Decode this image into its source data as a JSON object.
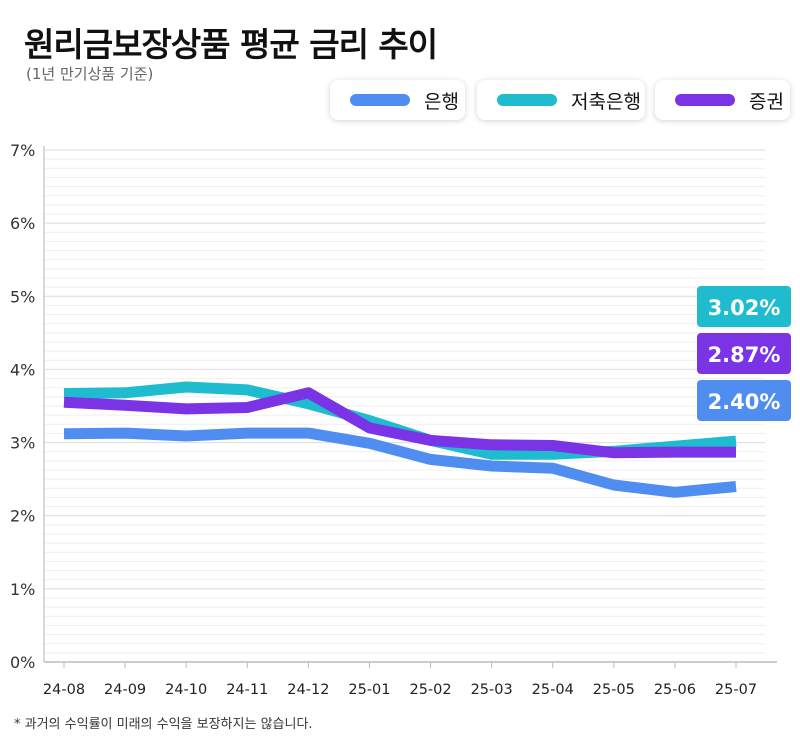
{
  "title": "원리금보장상품 평균 금리 추이",
  "subtitle": "(1년 만기상품 기준)",
  "footnote": "* 과거의 수익률이 미래의 수익을 보장하지는 않습니다.",
  "colors": {
    "bank": "#4f8ef0",
    "savings_bank": "#1fbccf",
    "securities": "#7b33e6"
  },
  "legend": [
    {
      "label": "은행",
      "series_index": 0
    },
    {
      "label": "저축은행",
      "series_index": 1
    },
    {
      "label": "증권",
      "series_index": 2
    }
  ],
  "chart_data": {
    "type": "line",
    "categories": [
      "24-08",
      "24-09",
      "24-10",
      "24-11",
      "24-12",
      "25-01",
      "25-02",
      "25-03",
      "25-04",
      "25-05",
      "25-06",
      "25-07"
    ],
    "y_ticks": [
      "0%",
      "1%",
      "2%",
      "3%",
      "4%",
      "5%",
      "6%",
      "7%"
    ],
    "ylim": [
      0,
      7
    ],
    "grid": "horizontal",
    "legend_position": "top-right",
    "series": [
      {
        "name": "은행",
        "color": "#4f8ef0",
        "values": [
          3.12,
          3.13,
          3.09,
          3.13,
          3.13,
          2.99,
          2.77,
          2.68,
          2.65,
          2.42,
          2.32,
          2.4
        ],
        "end_label": "2.40%"
      },
      {
        "name": "저축은행",
        "color": "#1fbccf",
        "values": [
          3.67,
          3.68,
          3.76,
          3.72,
          3.53,
          3.3,
          3.03,
          2.84,
          2.84,
          2.88,
          2.95,
          3.02
        ],
        "end_label": "3.02%"
      },
      {
        "name": "증권",
        "color": "#7b33e6",
        "values": [
          3.55,
          3.51,
          3.46,
          3.48,
          3.68,
          3.2,
          3.03,
          2.97,
          2.96,
          2.86,
          2.87,
          2.87
        ],
        "end_label": "2.87%"
      }
    ],
    "draw_order": [
      1,
      0,
      2
    ],
    "end_label_order": [
      1,
      2,
      0
    ]
  }
}
